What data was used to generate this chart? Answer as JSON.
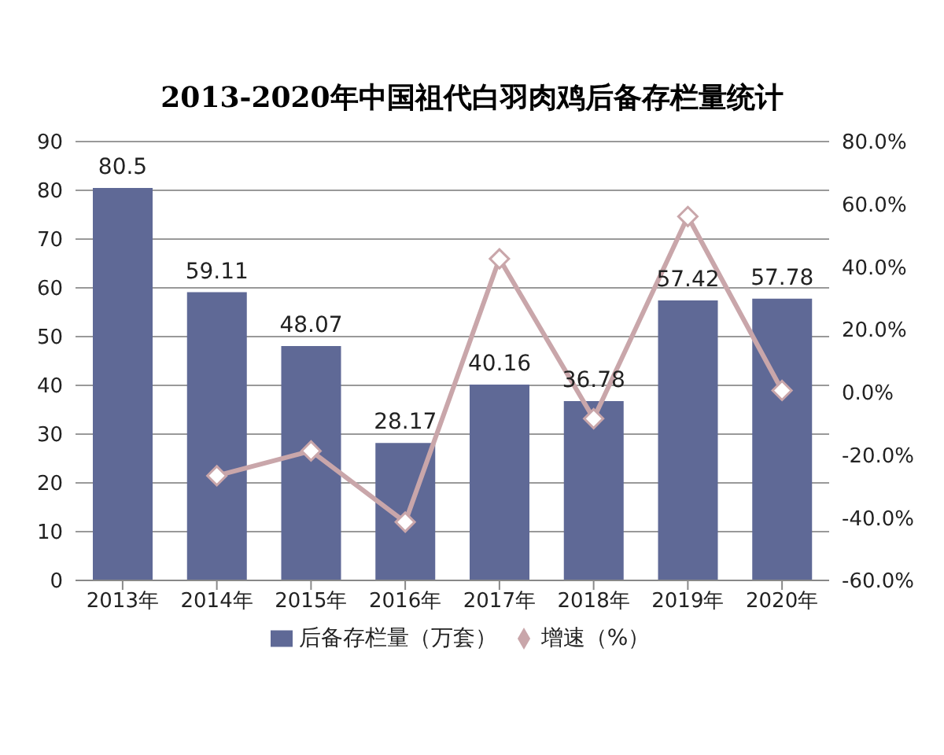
{
  "chart_data": {
    "type": "bar",
    "title": "2013-2020年中国祖代白羽肉鸡后备存栏量统计",
    "categories": [
      "2013年",
      "2014年",
      "2015年",
      "2016年",
      "2017年",
      "2018年",
      "2019年",
      "2020年"
    ],
    "series": [
      {
        "name": "后备存栏量（万套）",
        "color": "#5f6996",
        "values": [
          80.5,
          59.11,
          48.07,
          28.17,
          40.16,
          36.78,
          57.42,
          57.78
        ],
        "value_labels": [
          "80.5",
          "59.11",
          "48.07",
          "28.17",
          "40.16",
          "36.78",
          "57.42",
          "57.78"
        ]
      },
      {
        "name": "增速（%）",
        "type": "line",
        "axis": "y2",
        "color": "#c9a6aa",
        "marker": "diamond",
        "values": [
          null,
          -26.6,
          -18.7,
          -41.4,
          42.6,
          -8.4,
          56.1,
          0.6
        ]
      }
    ],
    "ylim": [
      0,
      90
    ],
    "yticks": [
      0,
      10,
      20,
      30,
      40,
      50,
      60,
      70,
      80,
      90
    ],
    "y2lim": [
      -60,
      80
    ],
    "y2ticks": [
      {
        "value": -60,
        "label": "-60.0%"
      },
      {
        "value": -40,
        "label": "-40.0%"
      },
      {
        "value": -20,
        "label": "-20.0%"
      },
      {
        "value": 0,
        "label": "0.0%"
      },
      {
        "value": 20,
        "label": "20.0%"
      },
      {
        "value": 40,
        "label": "40.0%"
      },
      {
        "value": 60,
        "label": "60.0%"
      },
      {
        "value": 80,
        "label": "80.0%"
      }
    ],
    "grid": "y",
    "legend": "bottom"
  }
}
